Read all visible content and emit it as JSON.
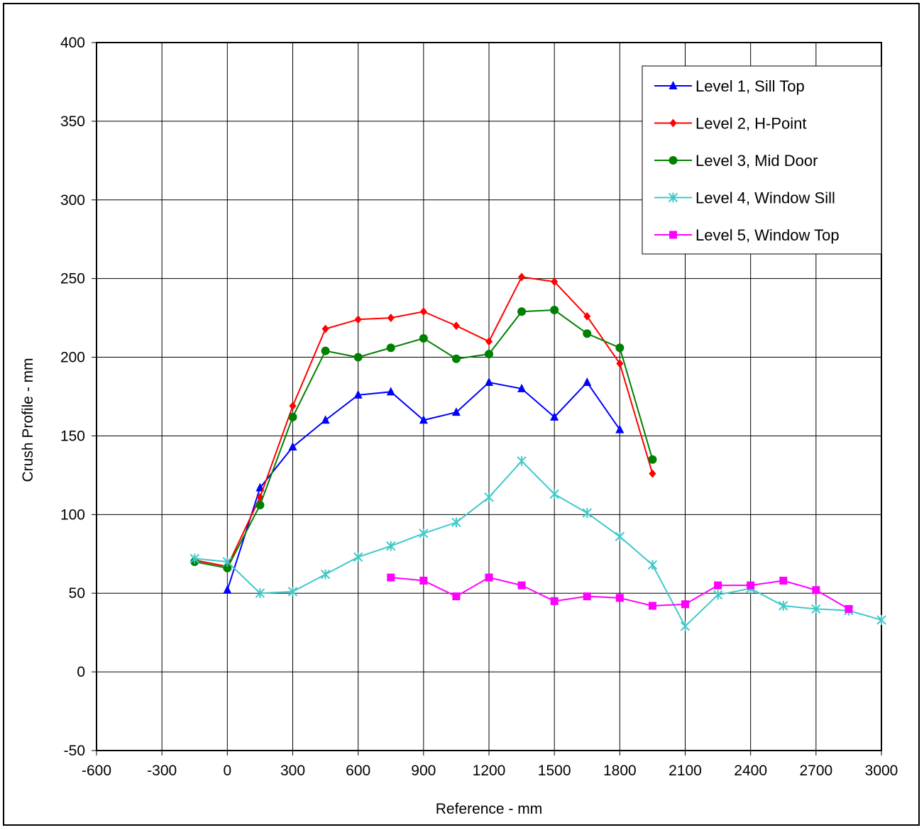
{
  "chart_data": {
    "type": "line",
    "title": "",
    "xlabel": "Reference - mm",
    "ylabel": "Crush Profile - mm",
    "xlim": [
      -600,
      3000
    ],
    "ylim": [
      -50,
      400
    ],
    "x_ticks": [
      -600,
      -300,
      0,
      300,
      600,
      900,
      1200,
      1500,
      1800,
      2100,
      2400,
      2700,
      3000
    ],
    "y_ticks": [
      -50,
      0,
      50,
      100,
      150,
      200,
      250,
      300,
      350,
      400
    ],
    "grid": true,
    "legend_position": "top-right",
    "series": [
      {
        "name": "Level 1, Sill Top",
        "color": "#0000ff",
        "marker": "triangle",
        "x": [
          0,
          150,
          300,
          450,
          600,
          750,
          900,
          1050,
          1200,
          1350,
          1500,
          1650,
          1800
        ],
        "y": [
          52,
          117,
          143,
          160,
          176,
          178,
          160,
          165,
          184,
          180,
          162,
          184,
          154
        ]
      },
      {
        "name": "Level 2, H-Point",
        "color": "#ff0000",
        "marker": "diamond",
        "x": [
          -150,
          0,
          150,
          300,
          450,
          600,
          750,
          900,
          1050,
          1200,
          1350,
          1500,
          1650,
          1800,
          1950
        ],
        "y": [
          71,
          67,
          111,
          169,
          218,
          224,
          225,
          229,
          220,
          210,
          251,
          248,
          226,
          196,
          126
        ]
      },
      {
        "name": "Level 3, Mid Door",
        "color": "#008000",
        "marker": "circle",
        "x": [
          -150,
          0,
          150,
          300,
          450,
          600,
          750,
          900,
          1050,
          1200,
          1350,
          1500,
          1650,
          1800,
          1950
        ],
        "y": [
          70,
          66,
          106,
          162,
          204,
          200,
          206,
          212,
          199,
          202,
          229,
          230,
          215,
          206,
          135
        ]
      },
      {
        "name": "Level 4, Window Sill",
        "color": "#40c8c8",
        "marker": "star",
        "x": [
          -150,
          0,
          150,
          300,
          450,
          600,
          750,
          900,
          1050,
          1200,
          1350,
          1500,
          1650,
          1800,
          1950,
          2100,
          2250,
          2400,
          2550,
          2700,
          2850,
          3000
        ],
        "y": [
          72,
          70,
          50,
          51,
          62,
          73,
          80,
          88,
          95,
          111,
          134,
          113,
          101,
          86,
          68,
          29,
          49,
          53,
          42,
          40,
          39,
          33
        ]
      },
      {
        "name": "Level 5, Window Top",
        "color": "#ff00ff",
        "marker": "square",
        "x": [
          750,
          900,
          1050,
          1200,
          1350,
          1500,
          1650,
          1800,
          1950,
          2100,
          2250,
          2400,
          2550,
          2700,
          2850
        ],
        "y": [
          60,
          58,
          48,
          60,
          55,
          45,
          48,
          47,
          42,
          43,
          55,
          55,
          58,
          52,
          40
        ]
      }
    ]
  }
}
